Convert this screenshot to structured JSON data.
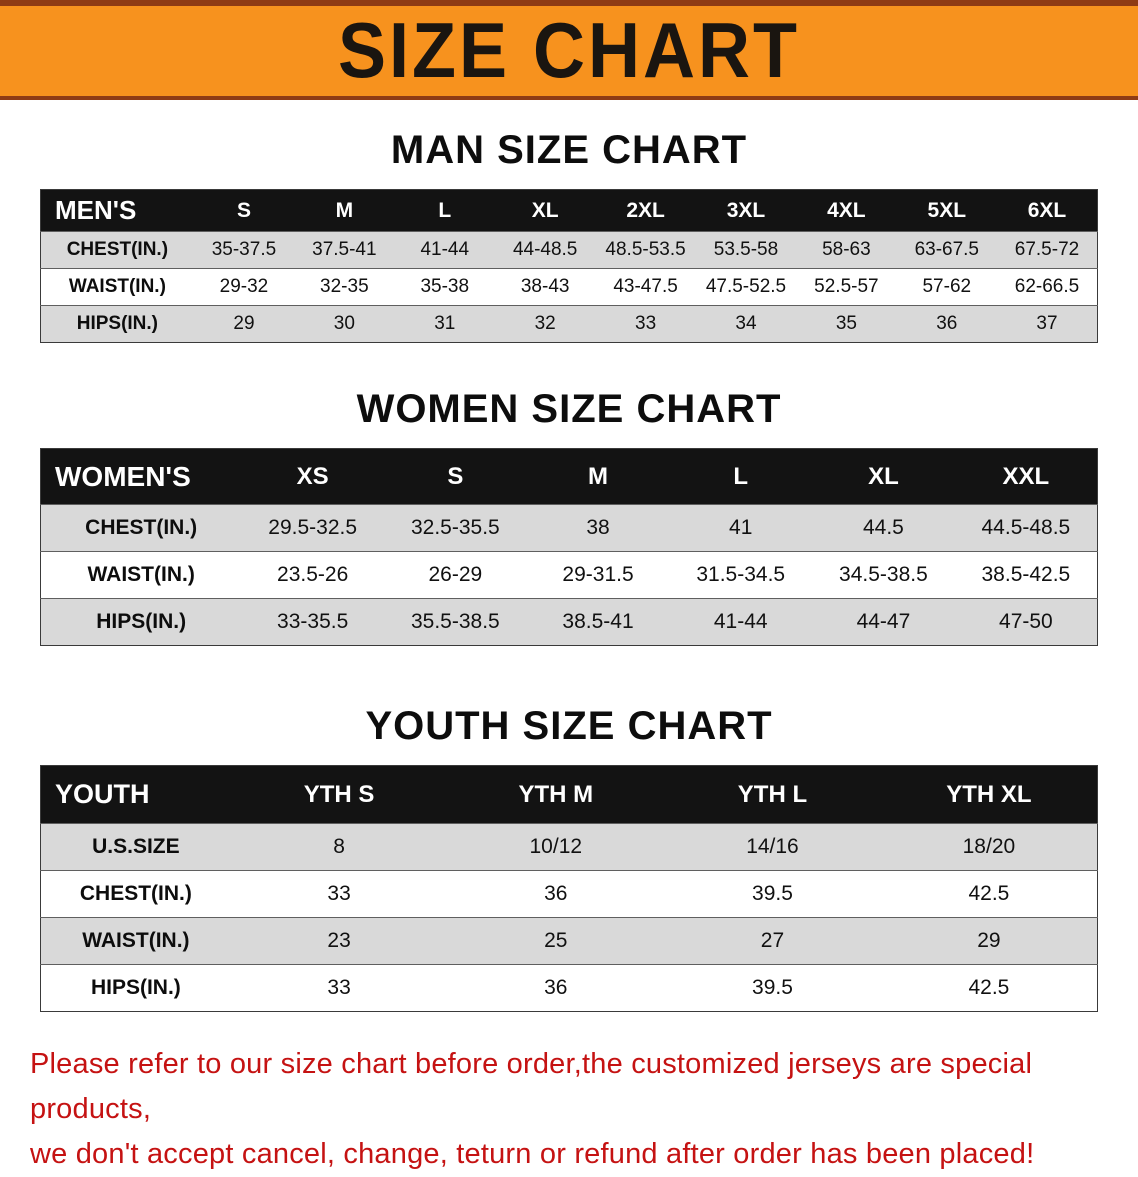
{
  "banner": {
    "title": "SIZE CHART"
  },
  "sections": [
    {
      "id": "men",
      "heading": "MAN SIZE CHART",
      "table": {
        "header": [
          "MEN'S",
          "S",
          "M",
          "L",
          "XL",
          "2XL",
          "3XL",
          "4XL",
          "5XL",
          "6XL"
        ],
        "rows": [
          [
            "CHEST(IN.)",
            "35-37.5",
            "37.5-41",
            "41-44",
            "44-48.5",
            "48.5-53.5",
            "53.5-58",
            "58-63",
            "63-67.5",
            "67.5-72"
          ],
          [
            "WAIST(IN.)",
            "29-32",
            "32-35",
            "35-38",
            "38-43",
            "43-47.5",
            "47.5-52.5",
            "52.5-57",
            "57-62",
            "62-66.5"
          ],
          [
            "HIPS(IN.)",
            "29",
            "30",
            "31",
            "32",
            "33",
            "34",
            "35",
            "36",
            "37"
          ]
        ]
      }
    },
    {
      "id": "women",
      "heading": "WOMEN SIZE CHART",
      "table": {
        "header": [
          "WOMEN'S",
          "XS",
          "S",
          "M",
          "L",
          "XL",
          "XXL"
        ],
        "rows": [
          [
            "CHEST(IN.)",
            "29.5-32.5",
            "32.5-35.5",
            "38",
            "41",
            "44.5",
            "44.5-48.5"
          ],
          [
            "WAIST(IN.)",
            "23.5-26",
            "26-29",
            "29-31.5",
            "31.5-34.5",
            "34.5-38.5",
            "38.5-42.5"
          ],
          [
            "HIPS(IN.)",
            "33-35.5",
            "35.5-38.5",
            "38.5-41",
            "41-44",
            "44-47",
            "47-50"
          ]
        ]
      }
    },
    {
      "id": "youth",
      "heading": "YOUTH SIZE CHART",
      "table": {
        "header": [
          "YOUTH",
          "YTH S",
          "YTH M",
          "YTH L",
          "YTH XL"
        ],
        "rows": [
          [
            "U.S.SIZE",
            "8",
            "10/12",
            "14/16",
            "18/20"
          ],
          [
            "CHEST(IN.)",
            "33",
            "36",
            "39.5",
            "42.5"
          ],
          [
            "WAIST(IN.)",
            "23",
            "25",
            "27",
            "29"
          ],
          [
            "HIPS(IN.)",
            "33",
            "36",
            "39.5",
            "42.5"
          ]
        ]
      }
    }
  ],
  "footnote": {
    "line1": "Please refer to our size chart before order,the customized jerseys are special products,",
    "line2": "we don't accept cancel, change, teturn or refund after order has been placed!"
  },
  "colors": {
    "banner_bg": "#f7921e",
    "banner_edge": "#8e3b15",
    "banner_text": "#1a1510",
    "table_header_bg": "#131313",
    "table_alt_row_bg": "#d9d9d9",
    "footnote_red": "#c51212"
  }
}
